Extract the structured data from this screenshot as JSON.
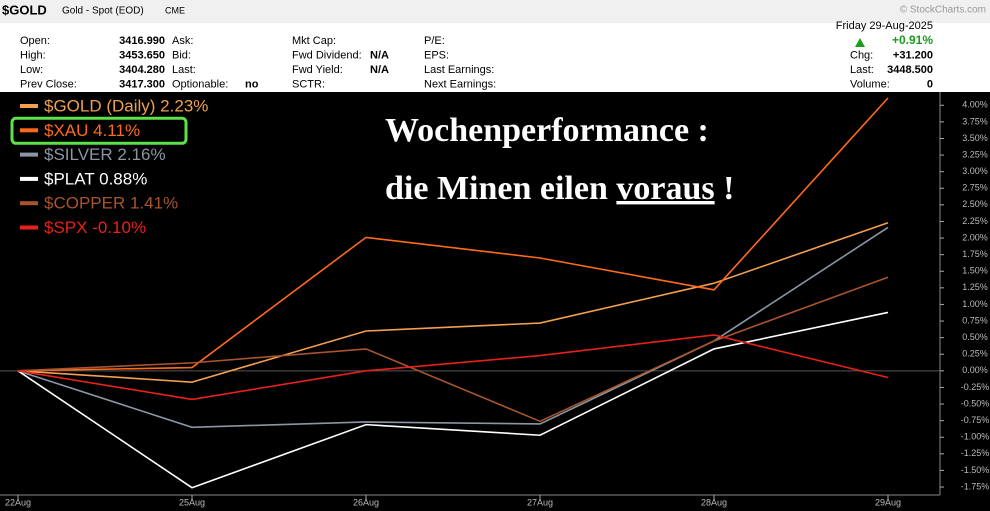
{
  "header": {
    "symbol": "$GOLD",
    "description": "Gold - Spot (EOD)",
    "exchange": "CME",
    "copyright": "© StockCharts.com",
    "columns": [
      [
        {
          "label": "Open:",
          "value": "3416.990"
        },
        {
          "label": "High:",
          "value": "3453.650"
        },
        {
          "label": "Low:",
          "value": "3404.280"
        },
        {
          "label": "Prev Close:",
          "value": "3417.300"
        }
      ],
      [
        {
          "label": "Ask:"
        },
        {
          "label": "Bid:"
        },
        {
          "label": "Last:"
        },
        {
          "label": "Optionable:",
          "value": "no"
        }
      ],
      [
        {
          "label": "Mkt Cap:"
        },
        {
          "label": "Fwd Dividend:",
          "value": "N/A"
        },
        {
          "label": "Fwd Yield:",
          "value": "N/A"
        },
        {
          "label": "SCTR:"
        }
      ],
      [
        {
          "label": "P/E:"
        },
        {
          "label": "EPS:"
        },
        {
          "label": "Last Earnings:"
        },
        {
          "label": "Next Earnings:"
        }
      ]
    ],
    "date": "Friday  29-Aug-2025",
    "change_pct": "+0.91%",
    "quote": [
      {
        "label": "Chg:",
        "value": "+31.200"
      },
      {
        "label": "Last:",
        "value": "3448.500"
      },
      {
        "label": "Volume:",
        "value": "0"
      }
    ]
  },
  "chart_data": {
    "type": "line",
    "categories": [
      "22Aug",
      "25Aug",
      "26Aug",
      "27Aug",
      "28Aug",
      "29Aug"
    ],
    "series": [
      {
        "name": "$GOLD (Daily) 2.23%",
        "color": "#f0a050",
        "values": [
          0,
          -0.17,
          0.6,
          0.72,
          1.32,
          2.23
        ]
      },
      {
        "name": "$XAU 4.11%",
        "color": "#ff6a1a",
        "values": [
          0,
          0.05,
          2.01,
          1.7,
          1.22,
          4.11
        ]
      },
      {
        "name": "$SILVER 2.16%",
        "color": "#8a96a4",
        "values": [
          0,
          -0.85,
          -0.77,
          -0.8,
          0.45,
          2.16
        ]
      },
      {
        "name": "$PLAT 0.88%",
        "color": "#ffffff",
        "values": [
          0,
          -1.76,
          -0.81,
          -0.97,
          0.33,
          0.88
        ]
      },
      {
        "name": "$COPPER 1.41%",
        "color": "#a8552e",
        "values": [
          0,
          0.12,
          0.33,
          -0.76,
          0.45,
          1.41
        ]
      },
      {
        "name": "$SPX -0.10%",
        "color": "#e8201a",
        "values": [
          0,
          -0.43,
          0,
          0.23,
          0.54,
          -0.1
        ]
      }
    ],
    "highlight": 1,
    "ylim": [
      -1.87,
      4.2
    ],
    "yticks": [
      {
        "value": 4,
        "label": "4.00%"
      },
      {
        "value": 3.75,
        "label": "3.75%"
      },
      {
        "value": 3.5,
        "label": "3.50%"
      },
      {
        "value": 3.25,
        "label": "3.25%"
      },
      {
        "value": 3,
        "label": "3.00%"
      },
      {
        "value": 2.75,
        "label": "2.75%"
      },
      {
        "value": 2.5,
        "label": "2.50%"
      },
      {
        "value": 2.25,
        "label": "2.25%"
      },
      {
        "value": 2,
        "label": "2.00%"
      },
      {
        "value": 1.75,
        "label": "1.75%"
      },
      {
        "value": 1.5,
        "label": "1.50%"
      },
      {
        "value": 1.25,
        "label": "1.25%"
      },
      {
        "value": 1,
        "label": "1.00%"
      },
      {
        "value": 0.75,
        "label": "0.75%"
      },
      {
        "value": 0.5,
        "label": "0.50%"
      },
      {
        "value": 0.25,
        "label": "0.25%"
      },
      {
        "value": 0,
        "label": "0.00%"
      },
      {
        "value": -0.25,
        "label": "-0.25%"
      },
      {
        "value": -0.5,
        "label": "-0.50%"
      },
      {
        "value": -0.75,
        "label": "-0.75%"
      },
      {
        "value": -1,
        "label": "-1.00%"
      },
      {
        "value": -1.25,
        "label": "-1.25%"
      },
      {
        "value": -1.5,
        "label": "-1.50%"
      },
      {
        "value": -1.75,
        "label": "-1.75%"
      }
    ],
    "annotation": {
      "line1": "Wochenperformance :",
      "line2": [
        "die Minen eilen ",
        "voraus",
        " !"
      ]
    }
  }
}
